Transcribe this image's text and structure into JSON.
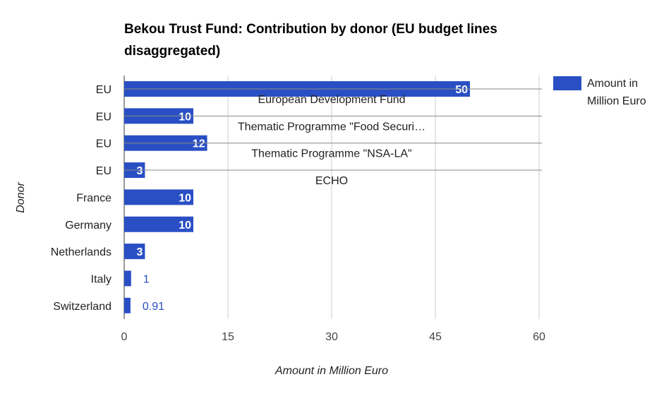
{
  "chart_data": {
    "type": "bar",
    "orientation": "horizontal",
    "title": "Bekou Trust Fund: Contribution by donor (EU budget lines disaggregated)",
    "xlabel": "Amount in Million Euro",
    "ylabel": "Donor",
    "xlim": [
      0,
      60
    ],
    "xticks": [
      0,
      15,
      30,
      45,
      60
    ],
    "grid": true,
    "legend": {
      "position": "right",
      "entries": [
        "Amount in Million Euro"
      ]
    },
    "categories": [
      "EU",
      "EU",
      "EU",
      "EU",
      "France",
      "Germany",
      "Netherlands",
      "Italy",
      "Switzerland"
    ],
    "values": [
      50,
      10,
      12,
      3,
      10,
      10,
      3,
      1,
      0.91
    ],
    "data_labels": [
      "50",
      "10",
      "12",
      "3",
      "10",
      "10",
      "3",
      "1",
      "0.91"
    ],
    "annotations": [
      "European Development Fund",
      "Thematic Programme \"Food Securi…",
      "Thematic Programme \"NSA-LA\"",
      "ECHO",
      "",
      "",
      "",
      "",
      ""
    ],
    "series": [
      {
        "name": "Amount in Million Euro",
        "values": [
          50,
          10,
          12,
          3,
          10,
          10,
          3,
          1,
          0.91
        ]
      }
    ],
    "colors": {
      "bar": "#2a4fc4",
      "grid": "#cccccc",
      "annotation_line": "#888888",
      "outside_label": "#2a4fc4"
    }
  }
}
